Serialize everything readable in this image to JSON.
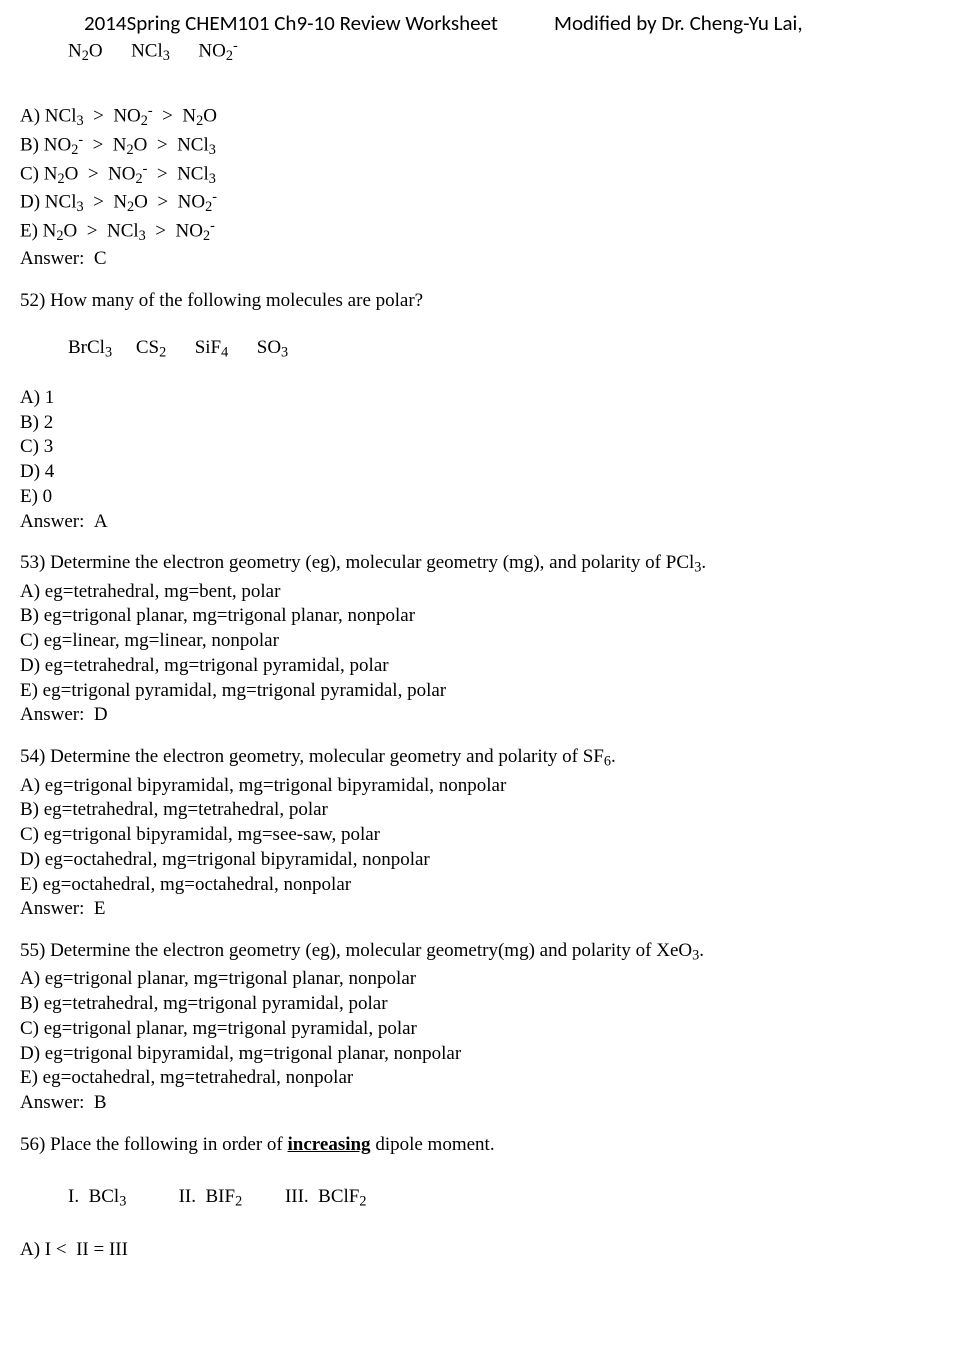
{
  "header": {
    "left": "2014Spring CHEM101 Ch9-10 Review Worksheet",
    "right": "Modified by Dr. Cheng-Yu Lai,"
  },
  "top_molecules": "N<sub>2</sub>O&nbsp;&nbsp;&nbsp;&nbsp;&nbsp;&nbsp;NCl<sub>3</sub>&nbsp;&nbsp;&nbsp;&nbsp;&nbsp;&nbsp;NO<sub>2</sub><sup>-</sup>",
  "q51": {
    "opts": [
      "A) NCl<sub>3</sub>&nbsp;&nbsp;&gt;&nbsp;&nbsp;NO<sub>2</sub><sup>-</sup>&nbsp;&nbsp;&gt;&nbsp;&nbsp;N<sub>2</sub>O",
      "B) NO<sub>2</sub><sup>-</sup>&nbsp;&nbsp;&gt;&nbsp;&nbsp;N<sub>2</sub>O&nbsp;&nbsp;&gt;&nbsp;&nbsp;NCl<sub>3</sub>",
      "C) N<sub>2</sub>O&nbsp;&nbsp;&gt;&nbsp;&nbsp;NO<sub>2</sub><sup>-</sup>&nbsp;&nbsp;&gt;&nbsp;&nbsp;NCl<sub>3</sub>",
      "D) NCl<sub>3</sub>&nbsp;&nbsp;&gt;&nbsp;&nbsp;N<sub>2</sub>O&nbsp;&nbsp;&gt;&nbsp;&nbsp;NO<sub>2</sub><sup>-</sup>",
      "E) N<sub>2</sub>O&nbsp;&nbsp;&gt;&nbsp;&nbsp;NCl<sub>3</sub>&nbsp;&nbsp;&gt;&nbsp;&nbsp;NO<sub>2</sub><sup>-</sup>"
    ],
    "answer": "Answer:&nbsp;&nbsp;C"
  },
  "q52": {
    "stem": "52) How many of the following molecules are polar?",
    "mols": "BrCl<sub>3</sub>&nbsp;&nbsp;&nbsp;&nbsp;&nbsp;CS<sub>2</sub>&nbsp;&nbsp;&nbsp;&nbsp;&nbsp;&nbsp;SiF<sub>4</sub>&nbsp;&nbsp;&nbsp;&nbsp;&nbsp;&nbsp;SO<sub>3</sub>",
    "opts": [
      "A) 1",
      "B) 2",
      "C) 3",
      "D) 4",
      "E) 0"
    ],
    "answer": "Answer:&nbsp;&nbsp;A"
  },
  "q53": {
    "stem": "53) Determine the electron geometry (eg), molecular geometry (mg), and polarity of PCl<sub>3</sub>.",
    "opts": [
      "A) eg=tetrahedral, mg=bent, polar",
      "B) eg=trigonal planar, mg=trigonal planar, nonpolar",
      "C) eg=linear, mg=linear, nonpolar",
      "D) eg=tetrahedral, mg=trigonal pyramidal, polar",
      "E) eg=trigonal pyramidal, mg=trigonal pyramidal, polar"
    ],
    "answer": "Answer:&nbsp;&nbsp;D"
  },
  "q54": {
    "stem": "54) Determine the electron geometry, molecular geometry and polarity of SF<sub>6</sub>.",
    "opts": [
      "A) eg=trigonal bipyramidal, mg=trigonal bipyramidal, nonpolar",
      "B) eg=tetrahedral, mg=tetrahedral, polar",
      "C) eg=trigonal bipyramidal, mg=see-saw, polar",
      "D) eg=octahedral, mg=trigonal bipyramidal, nonpolar",
      "E) eg=octahedral, mg=octahedral, nonpolar"
    ],
    "answer": "Answer:&nbsp;&nbsp;E"
  },
  "q55": {
    "stem": "55) Determine the electron geometry (eg), molecular geometry(mg) and polarity of XeO<sub>3</sub>.",
    "opts": [
      "A) eg=trigonal planar, mg=trigonal planar, nonpolar",
      "B) eg=tetrahedral, mg=trigonal pyramidal, polar",
      "C) eg=trigonal planar, mg=trigonal pyramidal, polar",
      "D) eg=trigonal bipyramidal, mg=trigonal planar, nonpolar",
      "E) eg=octahedral, mg=tetrahedral, nonpolar"
    ],
    "answer": "Answer:&nbsp;&nbsp;B"
  },
  "q56": {
    "stem": "56) Place the following in order of <span class=\"u\">increasing</span> dipole moment.",
    "roman": "I.&nbsp;&nbsp;BCl<sub>3</sub>&nbsp;&nbsp;&nbsp;&nbsp;&nbsp;&nbsp;&nbsp;&nbsp;&nbsp;&nbsp;&nbsp;II.&nbsp;&nbsp;BIF<sub>2</sub>&nbsp;&nbsp;&nbsp;&nbsp;&nbsp;&nbsp;&nbsp;&nbsp;&nbsp;III.&nbsp;&nbsp;BClF<sub>2</sub>",
    "opts": [
      "A) I &lt;&nbsp;&nbsp;II = III"
    ]
  }
}
